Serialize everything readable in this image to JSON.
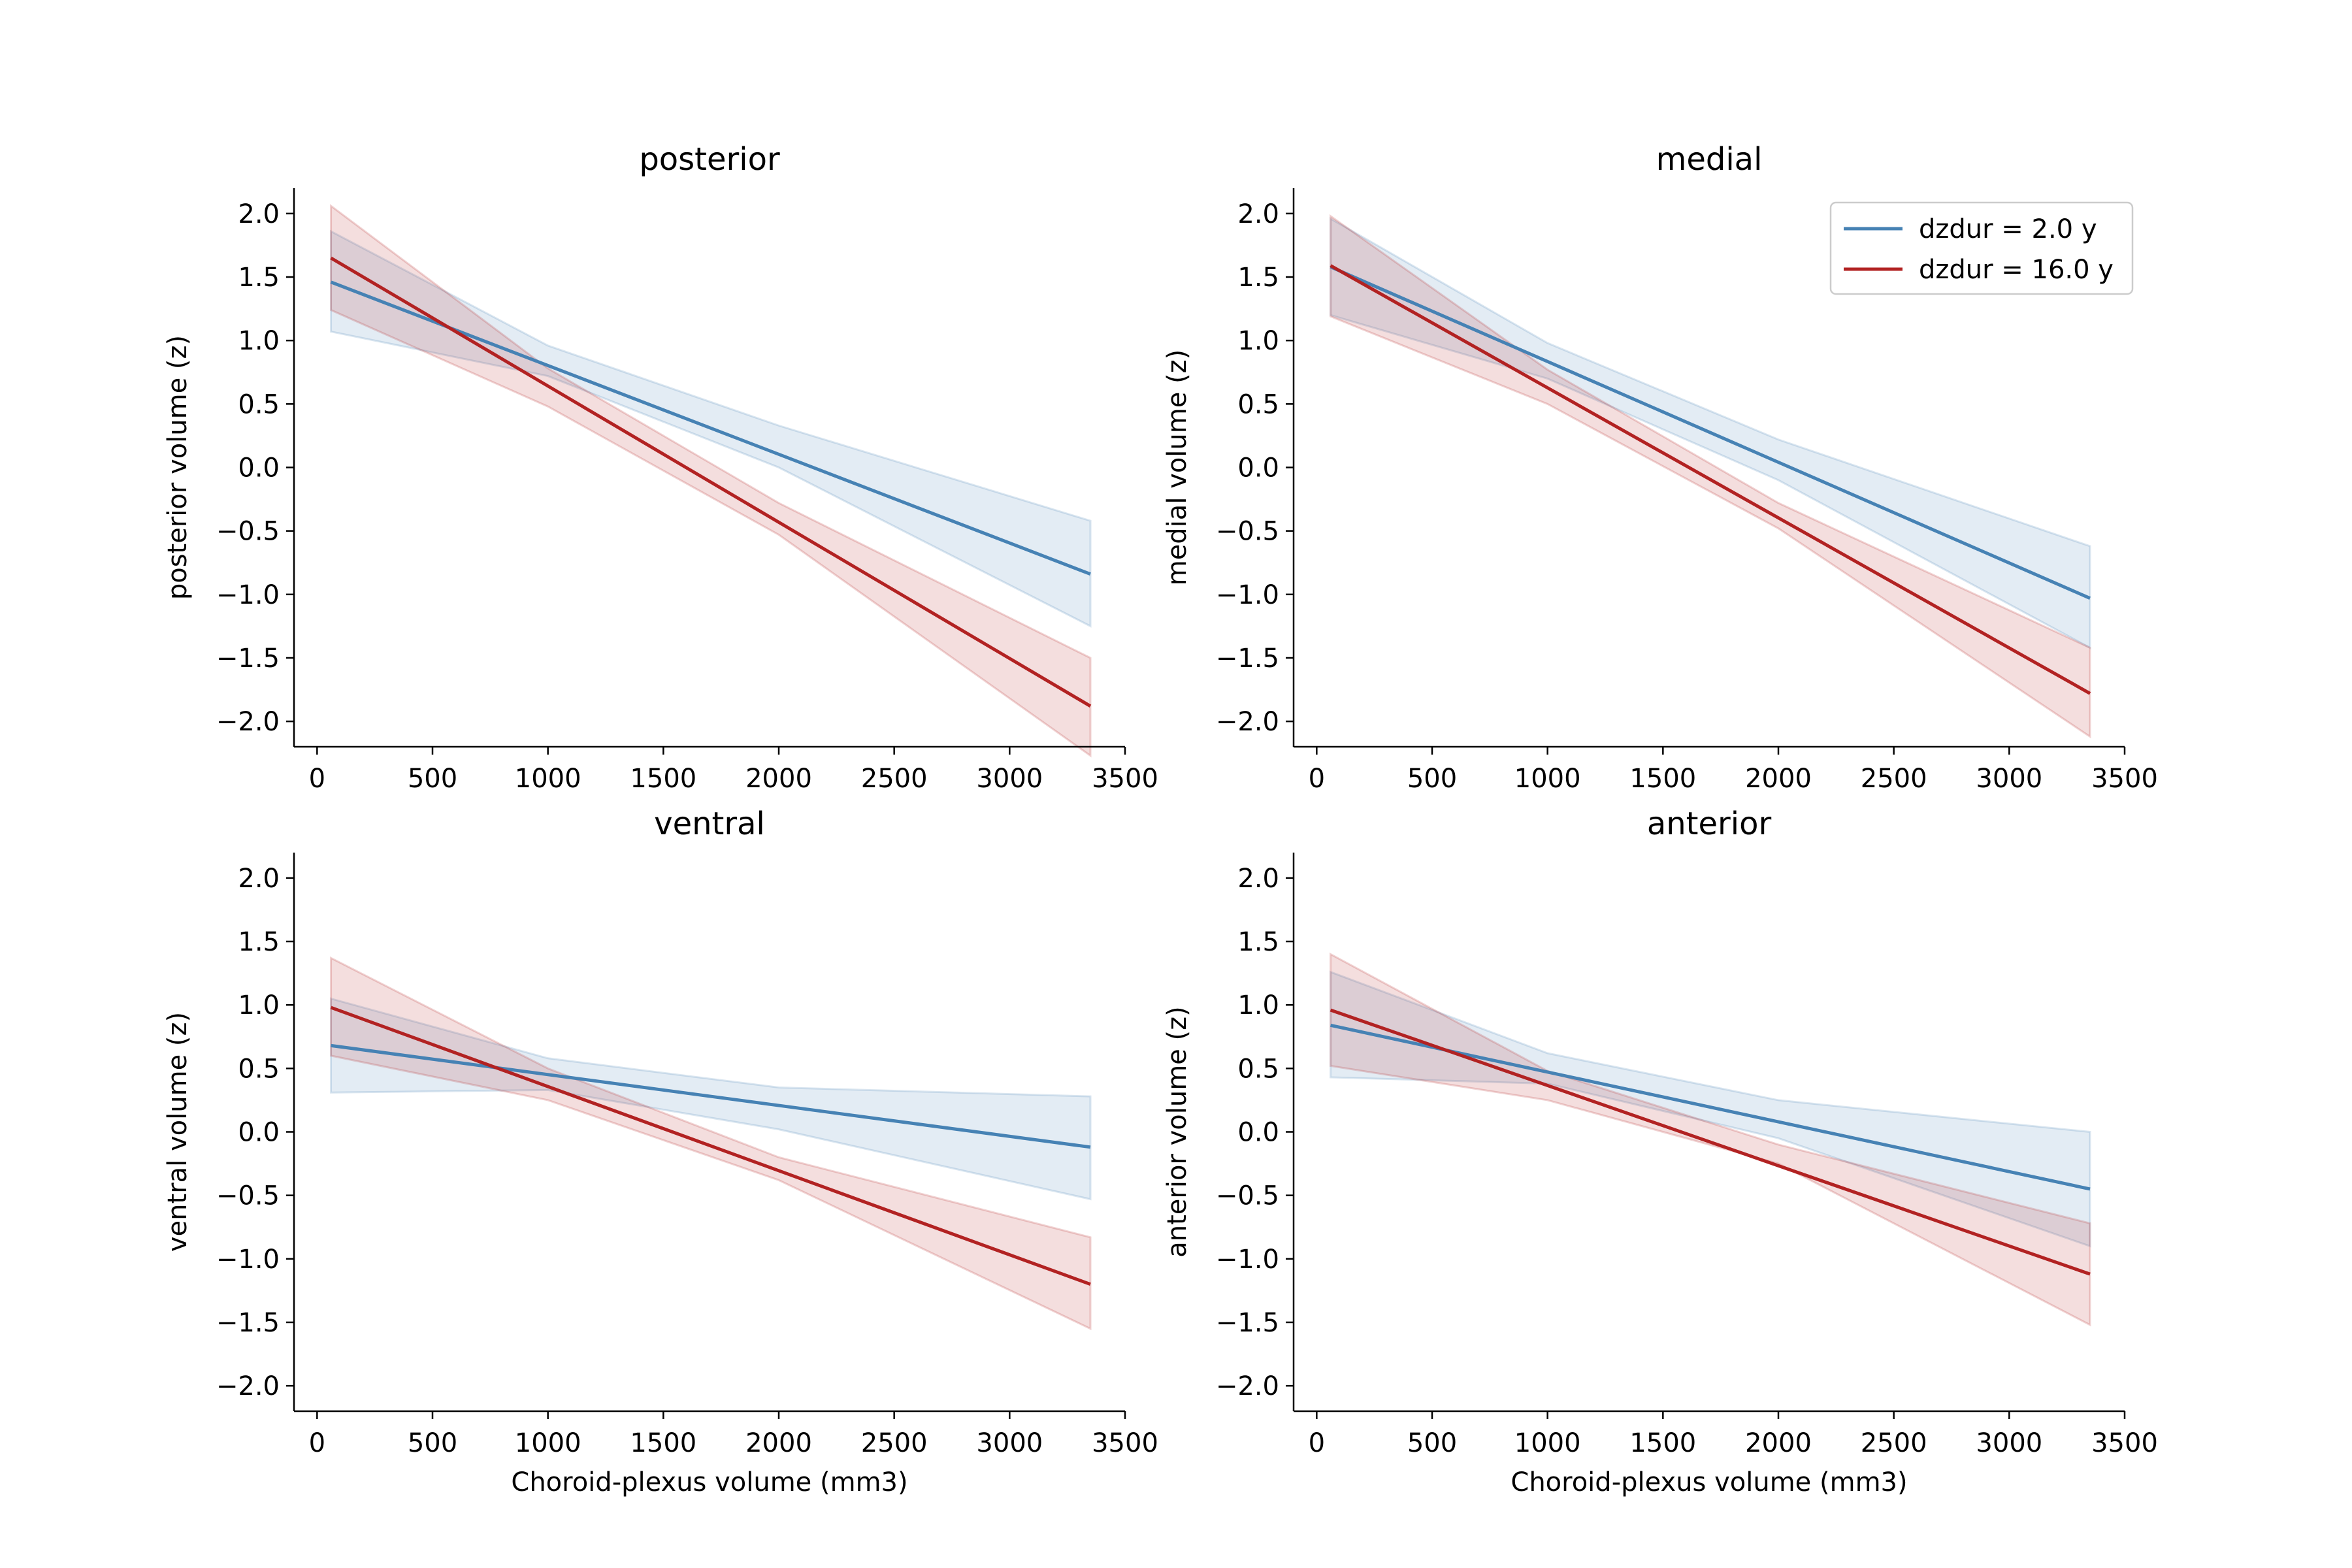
{
  "colors": {
    "series_2y": "#4682b4",
    "series_16y": "#b22222"
  },
  "legend": {
    "location": "upper right of medial panel",
    "entries": [
      "dzdur = 2.0 y",
      "dzdur = 16.0 y"
    ]
  },
  "chart_data": [
    {
      "type": "line",
      "title": "posterior",
      "ylabel": "posterior volume (z)",
      "xlabel": "",
      "xlim": [
        -100,
        3500
      ],
      "ylim": [
        -2.2,
        2.2
      ],
      "xticks": [
        "0",
        "500",
        "1000",
        "1500",
        "2000",
        "2500",
        "3000",
        "3500"
      ],
      "yticks": [
        "−2.0",
        "−1.5",
        "−1.0",
        "−0.5",
        "0.0",
        "0.5",
        "1.0",
        "1.5",
        "2.0"
      ],
      "grid": false,
      "series": [
        {
          "name": "dzdur = 2.0 y",
          "x": [
            60,
            3350
          ],
          "y": [
            1.46,
            -0.84
          ],
          "ci_x": [
            60,
            1000,
            2000,
            3350
          ],
          "ci_lower": [
            1.07,
            0.72,
            0.0,
            -1.25
          ],
          "ci_upper": [
            1.86,
            0.96,
            0.33,
            -0.42
          ]
        },
        {
          "name": "dzdur = 16.0 y",
          "x": [
            60,
            3350
          ],
          "y": [
            1.65,
            -1.88
          ],
          "ci_x": [
            60,
            1000,
            2000,
            3350
          ],
          "ci_lower": [
            1.24,
            0.48,
            -0.53,
            -2.27
          ],
          "ci_upper": [
            2.06,
            0.78,
            -0.28,
            -1.5
          ]
        }
      ]
    },
    {
      "type": "line",
      "title": "medial",
      "ylabel": "medial volume (z)",
      "xlabel": "",
      "xlim": [
        -100,
        3500
      ],
      "ylim": [
        -2.2,
        2.2
      ],
      "xticks": [
        "0",
        "500",
        "1000",
        "1500",
        "2000",
        "2500",
        "3000",
        "3500"
      ],
      "yticks": [
        "−2.0",
        "−1.5",
        "−1.0",
        "−0.5",
        "0.0",
        "0.5",
        "1.0",
        "1.5",
        "2.0"
      ],
      "grid": false,
      "series": [
        {
          "name": "dzdur = 2.0 y",
          "x": [
            60,
            3350
          ],
          "y": [
            1.58,
            -1.03
          ],
          "ci_x": [
            60,
            1000,
            2000,
            3350
          ],
          "ci_lower": [
            1.2,
            0.7,
            -0.1,
            -1.42
          ],
          "ci_upper": [
            1.96,
            0.98,
            0.22,
            -0.62
          ]
        },
        {
          "name": "dzdur = 16.0 y",
          "x": [
            60,
            3350
          ],
          "y": [
            1.59,
            -1.78
          ],
          "ci_x": [
            60,
            1000,
            2000,
            3350
          ],
          "ci_lower": [
            1.19,
            0.5,
            -0.48,
            -2.12
          ],
          "ci_upper": [
            1.98,
            0.77,
            -0.28,
            -1.42
          ]
        }
      ]
    },
    {
      "type": "line",
      "title": "ventral",
      "ylabel": "ventral volume (z)",
      "xlabel": "Choroid-plexus volume (mm3)",
      "xlim": [
        -100,
        3500
      ],
      "ylim": [
        -2.2,
        2.2
      ],
      "xticks": [
        "0",
        "500",
        "1000",
        "1500",
        "2000",
        "2500",
        "3000",
        "3500"
      ],
      "yticks": [
        "−2.0",
        "−1.5",
        "−1.0",
        "−0.5",
        "0.0",
        "0.5",
        "1.0",
        "1.5",
        "2.0"
      ],
      "grid": false,
      "series": [
        {
          "name": "dzdur = 2.0 y",
          "x": [
            60,
            3350
          ],
          "y": [
            0.68,
            -0.12
          ],
          "ci_x": [
            60,
            1000,
            2000,
            3350
          ],
          "ci_lower": [
            0.31,
            0.33,
            0.02,
            -0.53
          ],
          "ci_upper": [
            1.05,
            0.58,
            0.35,
            0.28
          ]
        },
        {
          "name": "dzdur = 16.0 y",
          "x": [
            60,
            3350
          ],
          "y": [
            0.98,
            -1.2
          ],
          "ci_x": [
            60,
            1000,
            2000,
            3350
          ],
          "ci_lower": [
            0.6,
            0.25,
            -0.38,
            -1.55
          ],
          "ci_upper": [
            1.37,
            0.5,
            -0.2,
            -0.83
          ]
        }
      ]
    },
    {
      "type": "line",
      "title": "anterior",
      "ylabel": "anterior volume (z)",
      "xlabel": "Choroid-plexus volume (mm3)",
      "xlim": [
        -100,
        3500
      ],
      "ylim": [
        -2.2,
        2.2
      ],
      "xticks": [
        "0",
        "500",
        "1000",
        "1500",
        "2000",
        "2500",
        "3000",
        "3500"
      ],
      "yticks": [
        "−2.0",
        "−1.5",
        "−1.0",
        "−0.5",
        "0.0",
        "0.5",
        "1.0",
        "1.5",
        "2.0"
      ],
      "grid": false,
      "series": [
        {
          "name": "dzdur = 2.0 y",
          "x": [
            60,
            3350
          ],
          "y": [
            0.84,
            -0.45
          ],
          "ci_x": [
            60,
            1000,
            2000,
            3350
          ],
          "ci_lower": [
            0.43,
            0.38,
            -0.05,
            -0.9
          ],
          "ci_upper": [
            1.26,
            0.62,
            0.25,
            0.0
          ]
        },
        {
          "name": "dzdur = 16.0 y",
          "x": [
            60,
            3350
          ],
          "y": [
            0.96,
            -1.12
          ],
          "ci_x": [
            60,
            1000,
            2000,
            3350
          ],
          "ci_lower": [
            0.52,
            0.25,
            -0.25,
            -1.52
          ],
          "ci_upper": [
            1.4,
            0.48,
            -0.1,
            -0.72
          ]
        }
      ]
    }
  ]
}
